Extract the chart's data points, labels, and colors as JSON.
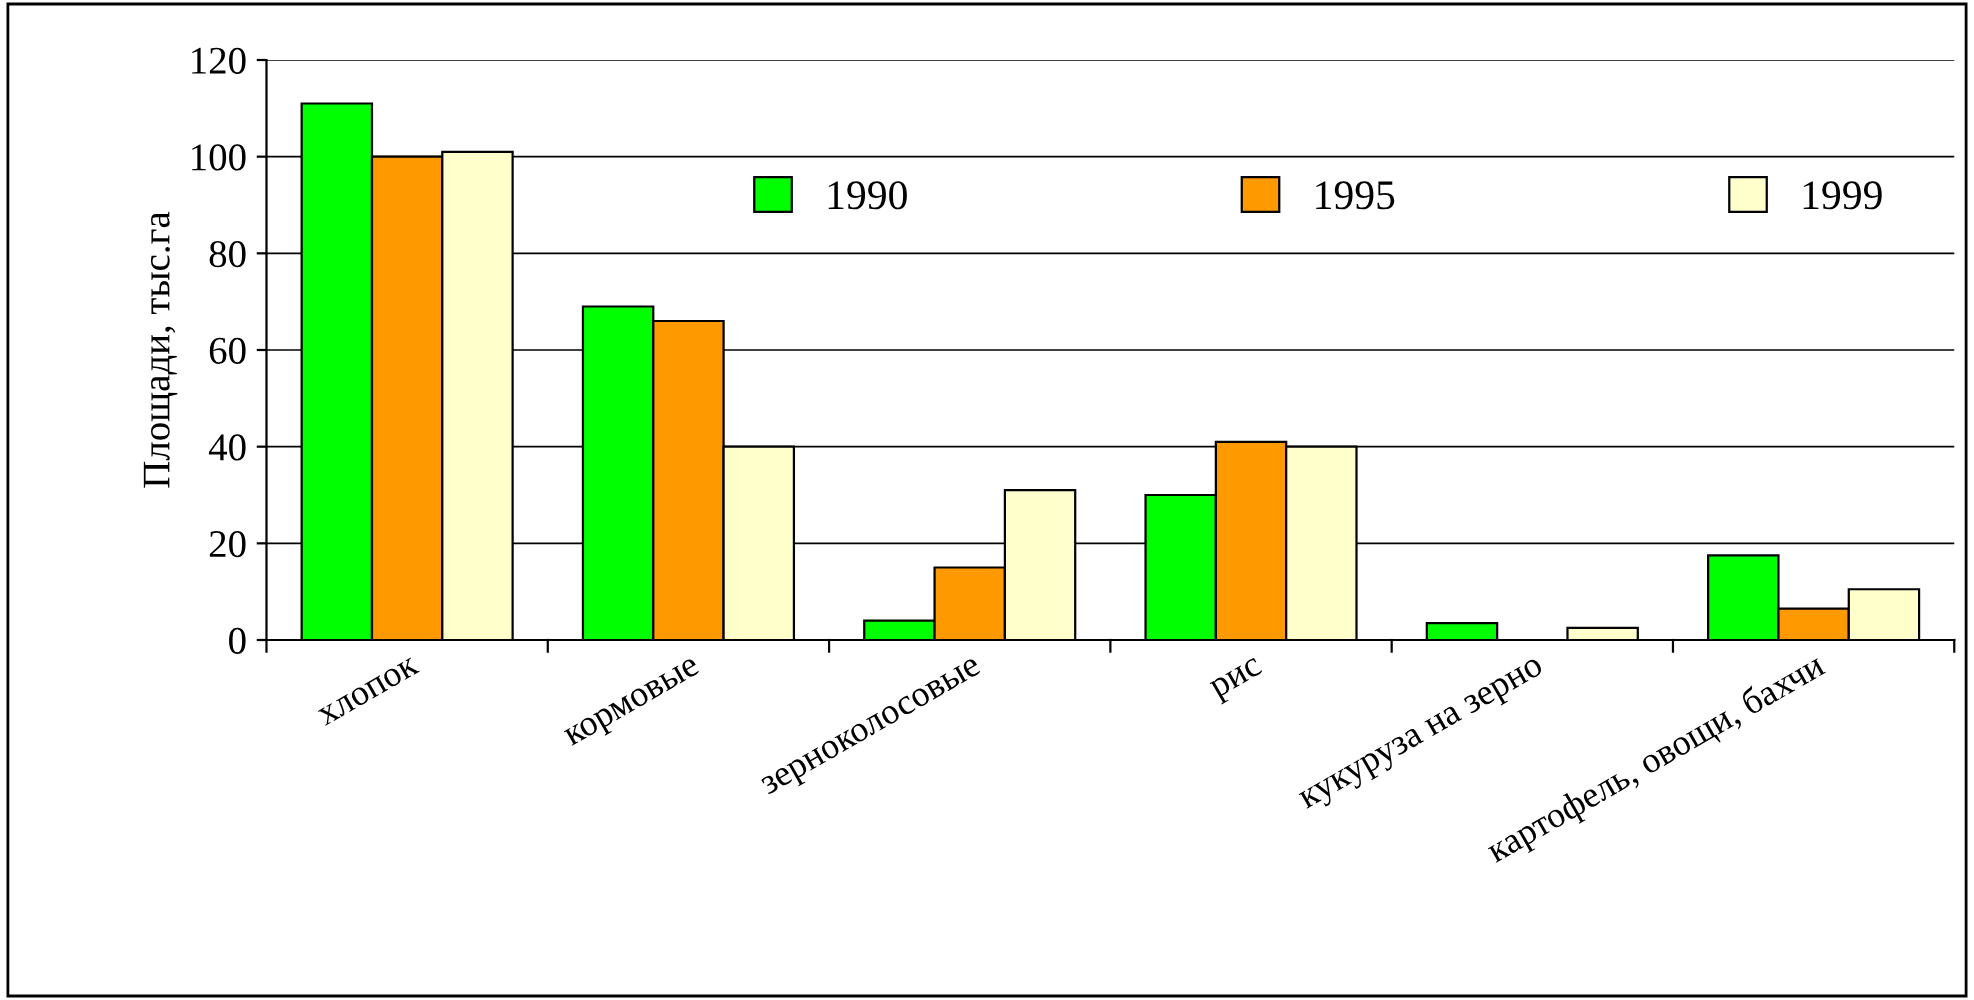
{
  "chart_data": {
    "type": "bar",
    "ylabel": "Площади, тыс.га",
    "categories": [
      "хлопок",
      "кормовые",
      "зерноколосовые",
      "рис",
      "кукуруза на зерно",
      "картофель, овощи, бахчи"
    ],
    "series": [
      {
        "name": "1990",
        "color": "#00ff00",
        "values": [
          111,
          69,
          4,
          30,
          3.5,
          17.5
        ]
      },
      {
        "name": "1995",
        "color": "#ff9900",
        "values": [
          100,
          66,
          15,
          41,
          null,
          6.5
        ]
      },
      {
        "name": "1999",
        "color": "#ffffcc",
        "values": [
          101,
          40,
          31,
          40,
          2.5,
          10.5
        ]
      }
    ],
    "ylim": [
      0,
      120
    ],
    "yticks": [
      0,
      20,
      40,
      60,
      80,
      100,
      120
    ],
    "grid": "y",
    "legend": "top right"
  }
}
